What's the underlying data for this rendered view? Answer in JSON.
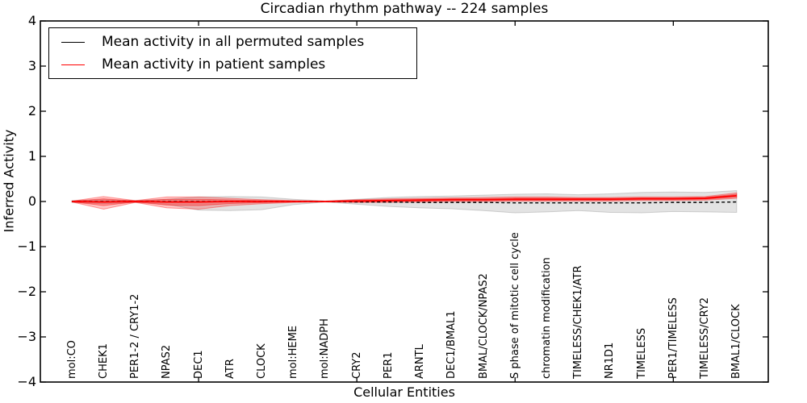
{
  "title": "Circadian rhythm pathway -- 224 samples",
  "legend": {
    "entries": [
      {
        "label": "Mean activity in all permuted samples",
        "color": "#000000"
      },
      {
        "label": "Mean activity in patient samples",
        "color": "#ff0000"
      }
    ]
  },
  "chart_data": {
    "type": "line",
    "title": "Circadian rhythm pathway -- 224 samples",
    "xlabel": "Cellular Entities",
    "ylabel": "Inferred Activity",
    "ylim": [
      -4,
      4
    ],
    "yticks": [
      -4,
      -3,
      -2,
      -1,
      0,
      1,
      2,
      3,
      4
    ],
    "xtick_marks_at": [
      4,
      9,
      14,
      19
    ],
    "grid": false,
    "legend_position": "upper left",
    "categories": [
      "mol:CO",
      "CHEK1",
      "PER1-2 / CRY1-2",
      "NPAS2",
      "DEC1",
      "ATR",
      "CLOCK",
      "mol:HEME",
      "mol:NADPH",
      "CRY2",
      "PER1",
      "ARNTL",
      "DEC1/BMAL1",
      "BMAL/CLOCK/NPAS2",
      "S phase of mitotic cell cycle",
      "chromatin modification",
      "TIMELESS/CHEK1/ATR",
      "NR1D1",
      "TIMELESS",
      "PER1/TIMELESS",
      "TIMELESS/CRY2",
      "BMAL1/CLOCK"
    ],
    "series": [
      {
        "name": "Mean activity in all permuted samples",
        "color": "#000000",
        "style": "dashed",
        "values": [
          0,
          0,
          0,
          0,
          0,
          0,
          0,
          0,
          0,
          -0.01,
          -0.01,
          -0.02,
          -0.02,
          -0.02,
          -0.03,
          -0.03,
          -0.03,
          -0.03,
          -0.03,
          -0.02,
          -0.02,
          -0.01
        ]
      },
      {
        "name": "Mean activity in patient samples",
        "color": "#ff0000",
        "style": "solid",
        "values": [
          0,
          -0.01,
          0,
          -0.01,
          -0.01,
          0,
          0,
          0,
          0,
          0.01,
          0.02,
          0.03,
          0.04,
          0.04,
          0.05,
          0.05,
          0.05,
          0.05,
          0.06,
          0.06,
          0.07,
          0.13
        ]
      }
    ],
    "bands": [
      {
        "name": "permuted-samples-range",
        "color": "#999999",
        "opacity": 0.28,
        "upper": [
          0.02,
          0.04,
          0.02,
          0.05,
          0.1,
          0.11,
          0.1,
          0.05,
          0.01,
          0.05,
          0.09,
          0.11,
          0.12,
          0.14,
          0.16,
          0.17,
          0.15,
          0.17,
          0.2,
          0.21,
          0.2,
          0.24
        ],
        "lower": [
          -0.02,
          -0.05,
          -0.02,
          -0.06,
          -0.19,
          -0.2,
          -0.18,
          -0.07,
          -0.01,
          -0.06,
          -0.11,
          -0.14,
          -0.16,
          -0.2,
          -0.25,
          -0.23,
          -0.2,
          -0.24,
          -0.25,
          -0.22,
          -0.23,
          -0.24
        ]
      },
      {
        "name": "patient-samples-range-outer",
        "color": "#ff0000",
        "opacity": 0.22,
        "upper": [
          0.01,
          0.11,
          0.02,
          0.1,
          0.1,
          0.07,
          0.04,
          0.02,
          0.01,
          0.04,
          0.06,
          0.07,
          0.08,
          0.09,
          0.1,
          0.1,
          0.09,
          0.09,
          0.1,
          0.1,
          0.11,
          0.19
        ],
        "lower": [
          -0.01,
          -0.17,
          -0.02,
          -0.14,
          -0.17,
          -0.09,
          -0.05,
          -0.02,
          -0.01,
          -0.02,
          -0.02,
          -0.01,
          0.0,
          0.0,
          0.01,
          0.01,
          0.01,
          0.01,
          0.02,
          0.02,
          0.03,
          0.07
        ]
      },
      {
        "name": "patient-samples-range-inner",
        "color": "#ff0000",
        "opacity": 0.26,
        "upper": [
          0.005,
          0.06,
          0.01,
          0.05,
          0.05,
          0.035,
          0.02,
          0.01,
          0.005,
          0.025,
          0.04,
          0.05,
          0.06,
          0.065,
          0.075,
          0.075,
          0.07,
          0.07,
          0.08,
          0.08,
          0.09,
          0.16
        ],
        "lower": [
          -0.005,
          -0.09,
          -0.01,
          -0.08,
          -0.09,
          -0.045,
          -0.025,
          -0.01,
          -0.005,
          -0.01,
          0.0,
          0.01,
          0.02,
          0.02,
          0.025,
          0.025,
          0.03,
          0.03,
          0.04,
          0.04,
          0.05,
          0.1
        ]
      }
    ]
  }
}
